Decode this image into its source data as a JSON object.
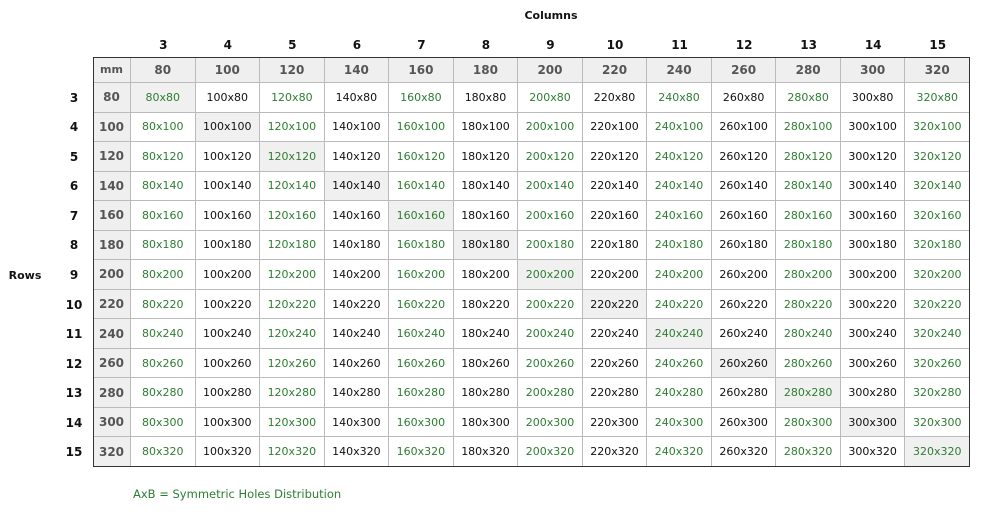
{
  "title": "Columns",
  "row_axis_label": "Rows",
  "unit": "mm",
  "accent_color": "#2e7d32",
  "column_numbers": [
    3,
    4,
    5,
    6,
    7,
    8,
    9,
    10,
    11,
    12,
    13,
    14,
    15
  ],
  "column_mm": [
    80,
    100,
    120,
    140,
    160,
    180,
    200,
    220,
    240,
    260,
    280,
    300,
    320
  ],
  "row_numbers": [
    3,
    4,
    5,
    6,
    7,
    8,
    9,
    10,
    11,
    12,
    13,
    14,
    15
  ],
  "row_mm": [
    80,
    100,
    120,
    140,
    160,
    180,
    200,
    220,
    240,
    260,
    280,
    300,
    320
  ],
  "cells": [
    [
      "80x80",
      "100x80",
      "120x80",
      "140x80",
      "160x80",
      "180x80",
      "200x80",
      "220x80",
      "240x80",
      "260x80",
      "280x80",
      "300x80",
      "320x80"
    ],
    [
      "80x100",
      "100x100",
      "120x100",
      "140x100",
      "160x100",
      "180x100",
      "200x100",
      "220x100",
      "240x100",
      "260x100",
      "280x100",
      "300x100",
      "320x100"
    ],
    [
      "80x120",
      "100x120",
      "120x120",
      "140x120",
      "160x120",
      "180x120",
      "200x120",
      "220x120",
      "240x120",
      "260x120",
      "280x120",
      "300x120",
      "320x120"
    ],
    [
      "80x140",
      "100x140",
      "120x140",
      "140x140",
      "160x140",
      "180x140",
      "200x140",
      "220x140",
      "240x140",
      "260x140",
      "280x140",
      "300x140",
      "320x140"
    ],
    [
      "80x160",
      "100x160",
      "120x160",
      "140x160",
      "160x160",
      "180x160",
      "200x160",
      "220x160",
      "240x160",
      "260x160",
      "280x160",
      "300x160",
      "320x160"
    ],
    [
      "80x180",
      "100x180",
      "120x180",
      "140x180",
      "160x180",
      "180x180",
      "200x180",
      "220x180",
      "240x180",
      "260x180",
      "280x180",
      "300x180",
      "320x180"
    ],
    [
      "80x200",
      "100x200",
      "120x200",
      "140x200",
      "160x200",
      "180x200",
      "200x200",
      "220x200",
      "240x200",
      "260x200",
      "280x200",
      "300x200",
      "320x200"
    ],
    [
      "80x220",
      "100x220",
      "120x220",
      "140x220",
      "160x220",
      "180x220",
      "200x220",
      "220x220",
      "240x220",
      "260x220",
      "280x220",
      "300x220",
      "320x220"
    ],
    [
      "80x240",
      "100x240",
      "120x240",
      "140x240",
      "160x240",
      "180x240",
      "200x240",
      "220x240",
      "240x240",
      "260x240",
      "280x240",
      "300x240",
      "320x240"
    ],
    [
      "80x260",
      "100x260",
      "120x260",
      "140x260",
      "160x260",
      "180x260",
      "200x260",
      "220x260",
      "240x260",
      "260x260",
      "280x260",
      "300x260",
      "320x260"
    ],
    [
      "80x280",
      "100x280",
      "120x280",
      "140x280",
      "160x280",
      "180x280",
      "200x280",
      "220x280",
      "240x280",
      "260x280",
      "280x280",
      "300x280",
      "320x280"
    ],
    [
      "80x300",
      "100x300",
      "120x300",
      "140x300",
      "160x300",
      "180x300",
      "200x300",
      "220x300",
      "240x300",
      "260x300",
      "280x300",
      "300x300",
      "320x300"
    ],
    [
      "80x320",
      "100x320",
      "120x320",
      "140x320",
      "160x320",
      "180x320",
      "200x320",
      "220x320",
      "240x320",
      "260x320",
      "280x320",
      "300x320",
      "320x320"
    ]
  ],
  "footnote": "AxB = Symmetric Holes Distribution"
}
